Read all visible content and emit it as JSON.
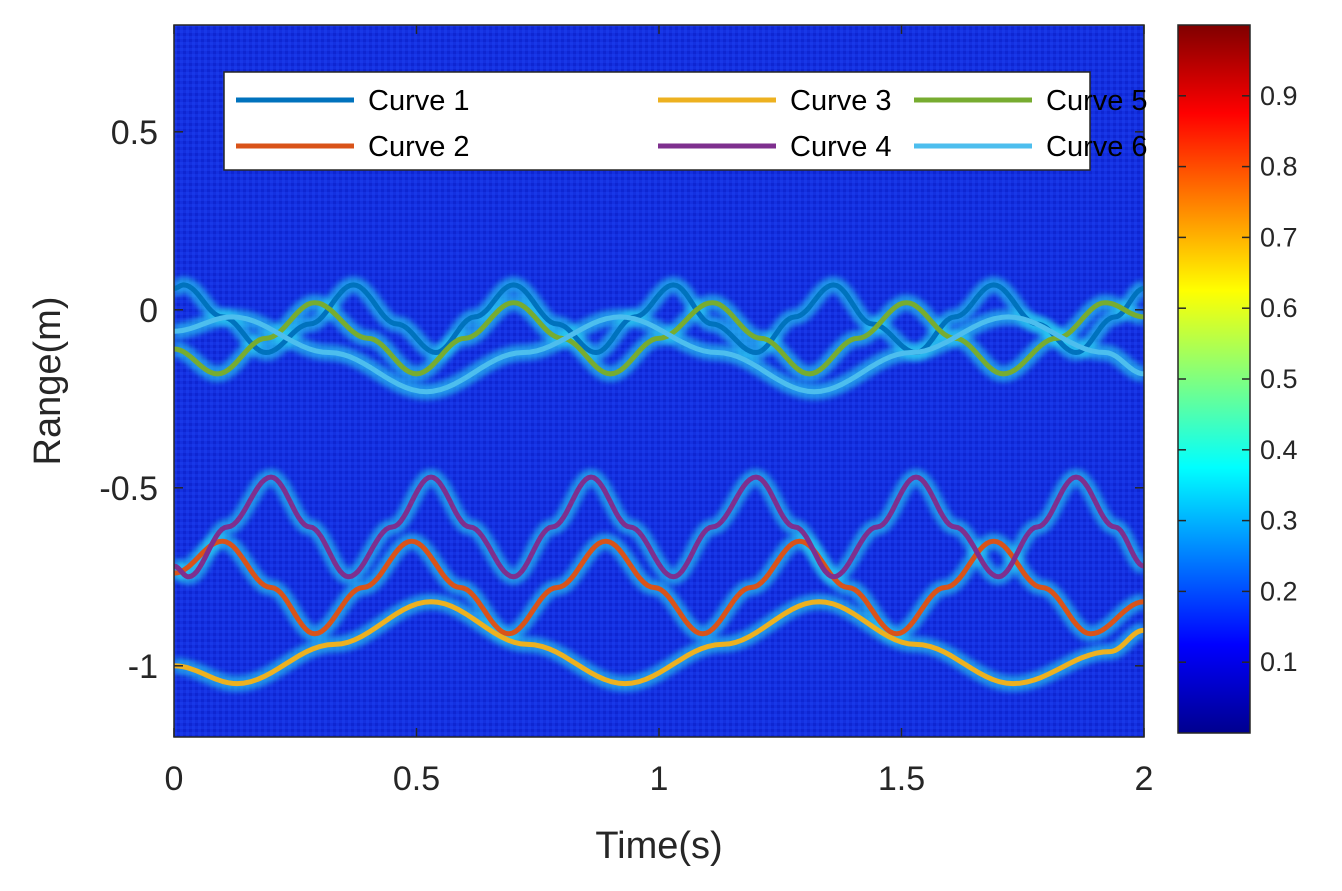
{
  "chart_data": {
    "type": "heatmap",
    "xlabel": "Time(s)",
    "ylabel": "Range(m)",
    "xlim": [
      0,
      2
    ],
    "ylim": [
      -1.2,
      0.8
    ],
    "x_ticks": [
      0,
      0.5,
      1,
      1.5,
      2
    ],
    "x_tick_labels": [
      "0",
      "0.5",
      "1",
      "1.5",
      "2"
    ],
    "y_ticks": [
      0.5,
      0,
      -0.5,
      -1
    ],
    "y_tick_labels": [
      "0.5",
      "0",
      "-0.5",
      "-1"
    ],
    "grid": false,
    "legend_placement": "top-left",
    "colormap": "jet",
    "colorbar": {
      "range": [
        0,
        1
      ],
      "ticks": [
        0.1,
        0.2,
        0.3,
        0.4,
        0.5,
        0.6,
        0.7,
        0.8,
        0.9
      ],
      "tick_labels": [
        "0.1",
        "0.2",
        "0.3",
        "0.4",
        "0.5",
        "0.6",
        "0.7",
        "0.8",
        "0.9"
      ]
    },
    "series": [
      {
        "name": "Curve 1",
        "color": "#0072BD",
        "x": [
          0,
          0.02,
          0.1,
          0.19,
          0.28,
          0.37,
          0.46,
          0.54,
          0.62,
          0.7,
          0.79,
          0.87,
          0.95,
          1.03,
          1.11,
          1.2,
          1.28,
          1.36,
          1.44,
          1.53,
          1.61,
          1.69,
          1.78,
          1.86,
          1.94,
          2.0
        ],
        "y": [
          0.06,
          0.07,
          -0.02,
          -0.12,
          -0.04,
          0.07,
          -0.04,
          -0.12,
          -0.02,
          0.07,
          -0.04,
          -0.12,
          -0.02,
          0.07,
          -0.04,
          -0.12,
          -0.02,
          0.07,
          -0.04,
          -0.12,
          -0.02,
          0.07,
          -0.04,
          -0.12,
          -0.02,
          0.06
        ]
      },
      {
        "name": "Curve 2",
        "color": "#D95319",
        "x": [
          0,
          0.1,
          0.2,
          0.29,
          0.39,
          0.49,
          0.59,
          0.69,
          0.79,
          0.89,
          0.99,
          1.09,
          1.19,
          1.29,
          1.39,
          1.49,
          1.59,
          1.69,
          1.79,
          1.89,
          2.0
        ],
        "y": [
          -0.74,
          -0.65,
          -0.78,
          -0.91,
          -0.78,
          -0.65,
          -0.78,
          -0.91,
          -0.78,
          -0.65,
          -0.78,
          -0.91,
          -0.78,
          -0.65,
          -0.78,
          -0.91,
          -0.78,
          -0.65,
          -0.78,
          -0.91,
          -0.82
        ]
      },
      {
        "name": "Curve 3",
        "color": "#EDB120",
        "x": [
          0,
          0.13,
          0.33,
          0.53,
          0.73,
          0.93,
          1.13,
          1.33,
          1.53,
          1.73,
          1.93,
          2.0
        ],
        "y": [
          -1.0,
          -1.05,
          -0.94,
          -0.82,
          -0.94,
          -1.05,
          -0.94,
          -0.82,
          -0.94,
          -1.05,
          -0.96,
          -0.9
        ]
      },
      {
        "name": "Curve 4",
        "color": "#7E2F8E",
        "x": [
          0,
          0.03,
          0.11,
          0.2,
          0.28,
          0.36,
          0.45,
          0.53,
          0.61,
          0.7,
          0.78,
          0.86,
          0.94,
          1.03,
          1.11,
          1.2,
          1.28,
          1.36,
          1.45,
          1.53,
          1.61,
          1.7,
          1.78,
          1.86,
          1.94,
          2.0
        ],
        "y": [
          -0.72,
          -0.75,
          -0.61,
          -0.47,
          -0.61,
          -0.75,
          -0.61,
          -0.47,
          -0.61,
          -0.75,
          -0.61,
          -0.47,
          -0.61,
          -0.75,
          -0.61,
          -0.47,
          -0.61,
          -0.75,
          -0.61,
          -0.47,
          -0.61,
          -0.75,
          -0.61,
          -0.47,
          -0.61,
          -0.72
        ]
      },
      {
        "name": "Curve 5",
        "color": "#77AC30",
        "x": [
          0,
          0.09,
          0.19,
          0.29,
          0.4,
          0.5,
          0.6,
          0.7,
          0.8,
          0.9,
          1.0,
          1.11,
          1.21,
          1.31,
          1.41,
          1.51,
          1.61,
          1.71,
          1.82,
          1.92,
          2.0
        ],
        "y": [
          -0.11,
          -0.18,
          -0.08,
          0.02,
          -0.08,
          -0.18,
          -0.08,
          0.02,
          -0.08,
          -0.18,
          -0.08,
          0.02,
          -0.08,
          -0.18,
          -0.08,
          0.02,
          -0.08,
          -0.18,
          -0.08,
          0.02,
          -0.02
        ]
      },
      {
        "name": "Curve 6",
        "color": "#4DBEEE",
        "x": [
          0,
          0.12,
          0.32,
          0.52,
          0.72,
          0.92,
          1.12,
          1.32,
          1.52,
          1.72,
          1.92,
          2.0
        ],
        "y": [
          -0.06,
          -0.02,
          -0.12,
          -0.23,
          -0.12,
          -0.02,
          -0.12,
          -0.23,
          -0.12,
          -0.02,
          -0.12,
          -0.18
        ]
      }
    ]
  }
}
